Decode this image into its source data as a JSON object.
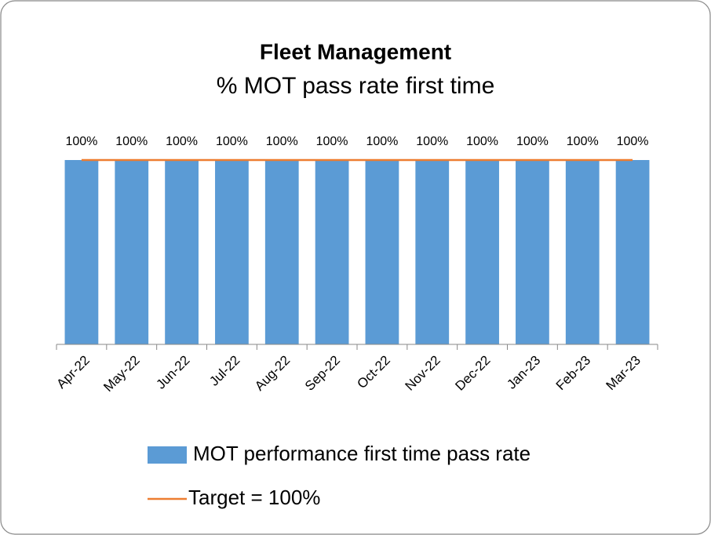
{
  "chart_data": {
    "type": "bar",
    "title": "Fleet Management",
    "subtitle": "% MOT pass rate first time",
    "categories": [
      "Apr-22",
      "May-22",
      "Jun-22",
      "Jul-22",
      "Aug-22",
      "Sep-22",
      "Oct-22",
      "Nov-22",
      "Dec-22",
      "Jan-23",
      "Feb-23",
      "Mar-23"
    ],
    "series": [
      {
        "name": "MOT performance first time pass rate",
        "color": "#5b9bd5",
        "type": "bar",
        "values": [
          100,
          100,
          100,
          100,
          100,
          100,
          100,
          100,
          100,
          100,
          100,
          100
        ],
        "value_labels": [
          "100%",
          "100%",
          "100%",
          "100%",
          "100%",
          "100%",
          "100%",
          "100%",
          "100%",
          "100%",
          "100%",
          "100%"
        ]
      },
      {
        "name": "Target = 100%",
        "color": "#ed7d31",
        "type": "line",
        "values": [
          100,
          100,
          100,
          100,
          100,
          100,
          100,
          100,
          100,
          100,
          100,
          100
        ]
      }
    ],
    "ylim": [
      0,
      100
    ],
    "legend": "bottom"
  }
}
